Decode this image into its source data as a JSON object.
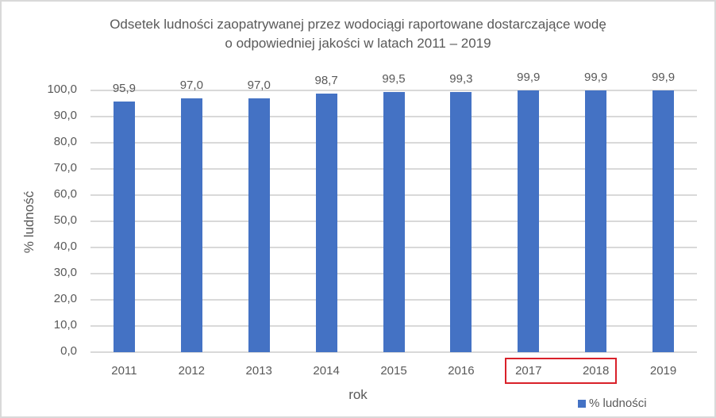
{
  "chart_data": {
    "type": "bar",
    "title": "Odsetek ludności zaopatrywanej przez wodociągi raportowane dostarczające wodę o odpowiedniej jakości w latach 2011 – 2019",
    "title_lines": [
      "Odsetek ludności zaopatrywanej przez wodociągi raportowane dostarczające wodę",
      "o  odpowiedniej jakości w latach 2011 – 2019"
    ],
    "categories": [
      "2011",
      "2012",
      "2013",
      "2014",
      "2015",
      "2016",
      "2017",
      "2018",
      "2019"
    ],
    "values": [
      95.9,
      97.0,
      97.0,
      98.7,
      99.5,
      99.3,
      99.9,
      99.9,
      99.9
    ],
    "value_labels": [
      "95,9",
      "97,0",
      "97,0",
      "98,7",
      "99,5",
      "99,3",
      "99,9",
      "99,9",
      "99,9"
    ],
    "series": [
      {
        "name": "% ludności",
        "values": [
          95.9,
          97.0,
          97.0,
          98.7,
          99.5,
          99.3,
          99.9,
          99.9,
          99.9
        ],
        "color": "#4472c4"
      }
    ],
    "xlabel": "rok",
    "ylabel": "% ludność",
    "ylim": [
      0,
      100
    ],
    "yticks": [
      "0,0",
      "10,0",
      "20,0",
      "30,0",
      "40,0",
      "50,0",
      "60,0",
      "70,0",
      "80,0",
      "90,0",
      "100,0"
    ],
    "grid": true,
    "legend": {
      "position": "bottom-right",
      "entries": [
        "% ludności"
      ]
    },
    "annotations": [
      {
        "type": "highlight-box",
        "target": [
          "2017",
          "2018"
        ],
        "color": "#d9212a"
      }
    ]
  },
  "colors": {
    "bar": "#4472c4",
    "highlight": "#d9212a",
    "grid": "#d9d9d9",
    "text": "#595959"
  }
}
